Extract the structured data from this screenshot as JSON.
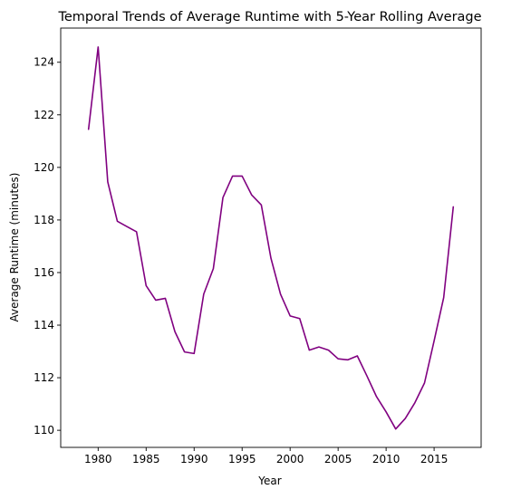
{
  "chart_data": {
    "type": "line",
    "title": "Temporal Trends of Average Runtime with 5-Year Rolling Average",
    "xlabel": "Year",
    "ylabel": "Average Runtime (minutes)",
    "xlim": [
      1976.1,
      2019.9
    ],
    "ylim": [
      109.35,
      125.3
    ],
    "xticks": [
      1980,
      1985,
      1990,
      1995,
      2000,
      2005,
      2010,
      2015
    ],
    "yticks": [
      110,
      112,
      114,
      116,
      118,
      120,
      122,
      124
    ],
    "grid": false,
    "line_color": "#800080",
    "series": [
      {
        "x": [
          1979,
          1980,
          1981,
          1982,
          1983,
          1984,
          1985,
          1986,
          1987,
          1988,
          1989,
          1990,
          1991,
          1992,
          1993,
          1994,
          1995,
          1996,
          1997,
          1998,
          1999,
          2000,
          2001,
          2002,
          2003,
          2004,
          2005,
          2006,
          2007,
          2008,
          2009,
          2010,
          2011,
          2012,
          2013,
          2014,
          2015,
          2016,
          2017
        ],
        "values": [
          121.45,
          124.58,
          119.45,
          117.95,
          117.75,
          117.55,
          115.5,
          114.95,
          115.02,
          113.75,
          112.98,
          112.92,
          115.18,
          116.15,
          118.85,
          119.67,
          119.67,
          118.95,
          118.57,
          116.55,
          115.18,
          114.35,
          114.25,
          113.05,
          113.17,
          113.05,
          112.72,
          112.68,
          112.83,
          112.07,
          111.28,
          110.7,
          110.05,
          110.45,
          111.05,
          111.8,
          113.4,
          115.05,
          118.5
        ]
      }
    ]
  }
}
